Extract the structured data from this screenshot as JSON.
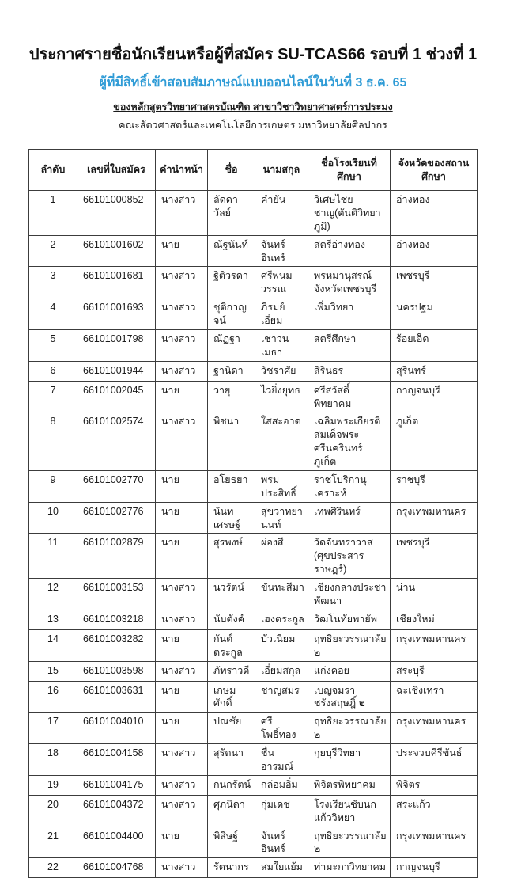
{
  "page": {
    "title": "ประกาศรายชื่อนักเรียนหรือผู้ที่สมัคร SU-TCAS66 รอบที่ 1 ช่วงที่ 1",
    "subtitle": "ผู้ที่มีสิทธิ์เข้าสอบสัมภาษณ์แบบออนไลน์ในวันที่ 3 ธ.ค. 65",
    "program_line": "ของหลักสูตรวิทยาศาสตรบัณฑิต สาขาวิชาวิทยาศาสตร์การประมง",
    "faculty_line": "คณะสัตวศาสตร์และเทคโนโลยีการเกษตร มหาวิทยาลัยศิลปากร"
  },
  "colors": {
    "subtitle_blue": "#2e9bd6",
    "text": "#1b1b1b",
    "table_border": "#3c3c3c"
  },
  "table": {
    "columns": [
      "ลำดับ",
      "เลขที่ใบสมัคร",
      "คำนำหน้า",
      "ชื่อ",
      "นามสกุล",
      "ชื่อโรงเรียนที่ศึกษา",
      "จังหวัดของสถานศึกษา"
    ],
    "rows": [
      {
        "no": "1",
        "application_no": "66101000852",
        "prefix": "นางสาว",
        "first_name": "ลัดดาวัลย์",
        "last_name": "คำยัน",
        "school": "วิเศษไชยชาญ(ตันติวิทยาภูมิ)",
        "province": "อ่างทอง"
      },
      {
        "no": "2",
        "application_no": "66101001602",
        "prefix": "นาย",
        "first_name": "ณัฐนันท์",
        "last_name": "จันทร์อินทร์",
        "school": "สตรีอ่างทอง",
        "province": "อ่างทอง"
      },
      {
        "no": "3",
        "application_no": "66101001681",
        "prefix": "นางสาว",
        "first_name": "ฐิติวรดา",
        "last_name": "ศรีพนมวรรณ",
        "school": "พรหมานุสรณ์จังหวัดเพชรบุรี",
        "province": "เพชรบุรี"
      },
      {
        "no": "4",
        "application_no": "66101001693",
        "prefix": "นางสาว",
        "first_name": "ชุติกาญจน์",
        "last_name": "ภิรมย์เอี่ยม",
        "school": "เพิ่มวิทยา",
        "province": "นครปฐม"
      },
      {
        "no": "5",
        "application_no": "66101001798",
        "prefix": "นางสาว",
        "first_name": "ณัฏฐา",
        "last_name": "เชาวนเมธา",
        "school": "สตรีศึกษา",
        "province": "ร้อยเอ็ด"
      },
      {
        "no": "6",
        "application_no": "66101001944",
        "prefix": "นางสาว",
        "first_name": "ฐานิดา",
        "last_name": "วัชราศัย",
        "school": "สิรินธร",
        "province": "สุรินทร์"
      },
      {
        "no": "7",
        "application_no": "66101002045",
        "prefix": "นาย",
        "first_name": "วายุ",
        "last_name": "ไวยิ่งยุทธ",
        "school": "ศรีสวัสดิ์พิทยาคม",
        "province": "กาญจนบุรี"
      },
      {
        "no": "8",
        "application_no": "66101002574",
        "prefix": "นางสาว",
        "first_name": "พิชนา",
        "last_name": "ใสสะอาด",
        "school": "เฉลิมพระเกียรติสมเด็จพระ ศรีนครินทร์ ภูเก็ต",
        "province": "ภูเก็ต"
      },
      {
        "no": "9",
        "application_no": "66101002770",
        "prefix": "นาย",
        "first_name": "อโยธยา",
        "last_name": "พรมประสิทธิ์",
        "school": "ราชโบริกานุเคราะห์",
        "province": "ราชบุรี"
      },
      {
        "no": "10",
        "application_no": "66101002776",
        "prefix": "นาย",
        "first_name": "นันทเศรษฐ์",
        "last_name": "สุขวาทยานนท์",
        "school": "เทพศิรินทร์",
        "province": "กรุงเทพมหานคร"
      },
      {
        "no": "11",
        "application_no": "66101002879",
        "prefix": "นาย",
        "first_name": "สุรพงษ์",
        "last_name": "ผ่องสี",
        "school": "วัดจันทราวาส (ศุขประสาร ราษฎร์)",
        "province": "เพชรบุรี"
      },
      {
        "no": "12",
        "application_no": "66101003153",
        "prefix": "นางสาว",
        "first_name": "นวรัตน์",
        "last_name": "ขันทะสีมา",
        "school": "เชียงกลางประชาพัฒนา",
        "province": "น่าน"
      },
      {
        "no": "13",
        "application_no": "66101003218",
        "prefix": "นางสาว",
        "first_name": "นับตังค์",
        "last_name": "เฮงตระกูล",
        "school": "วัฒโนทัยพายัพ",
        "province": "เชียงใหม่"
      },
      {
        "no": "14",
        "application_no": "66101003282",
        "prefix": "นาย",
        "first_name": "กันต์ตระกูล",
        "last_name": "บัวเนียม",
        "school": "ฤทธิยะวรรณาลัย ๒",
        "province": "กรุงเทพมหานคร"
      },
      {
        "no": "15",
        "application_no": "66101003598",
        "prefix": "นางสาว",
        "first_name": "ภัทราวดี",
        "last_name": "เอี่ยมสกุล",
        "school": "แก่งคอย",
        "province": "สระบุรี"
      },
      {
        "no": "16",
        "application_no": "66101003631",
        "prefix": "นาย",
        "first_name": "เกษมศักดิ์",
        "last_name": "ชาญสมร",
        "school": "เบญจมราชรังสฤษฎิ์ ๒",
        "province": "ฉะเชิงเทรา"
      },
      {
        "no": "17",
        "application_no": "66101004010",
        "prefix": "นาย",
        "first_name": "ปณชัย",
        "last_name": "ศรีโพธิ์ทอง",
        "school": "ฤทธิยะวรรณาลัย ๒",
        "province": "กรุงเทพมหานคร"
      },
      {
        "no": "18",
        "application_no": "66101004158",
        "prefix": "นางสาว",
        "first_name": "สุรัตนา",
        "last_name": "ชื่นอารมณ์",
        "school": "กุยบุรีวิทยา",
        "province": "ประจวบคีรีขันธ์"
      },
      {
        "no": "19",
        "application_no": "66101004175",
        "prefix": "นางสาว",
        "first_name": "กนกรัตน์",
        "last_name": "กล่อมอิ่ม",
        "school": "พิจิตรพิทยาคม",
        "province": "พิจิตร"
      },
      {
        "no": "20",
        "application_no": "66101004372",
        "prefix": "นางสาว",
        "first_name": "ศุภนิดา",
        "last_name": "กุ่มเดช",
        "school": "โรงเรียนซับนกแก้ววิทยา",
        "province": "สระแก้ว"
      },
      {
        "no": "21",
        "application_no": "66101004400",
        "prefix": "นาย",
        "first_name": "พิสิษฐ์",
        "last_name": "จันทร์อินทร์",
        "school": "ฤทธิยะวรรณาลัย ๒",
        "province": "กรุงเทพมหานคร"
      },
      {
        "no": "22",
        "application_no": "66101004768",
        "prefix": "นางสาว",
        "first_name": "รัตนากร",
        "last_name": "สมใยแย้ม",
        "school": "ท่ามะกาวิทยาคม",
        "province": "กาญจนบุรี"
      }
    ]
  }
}
